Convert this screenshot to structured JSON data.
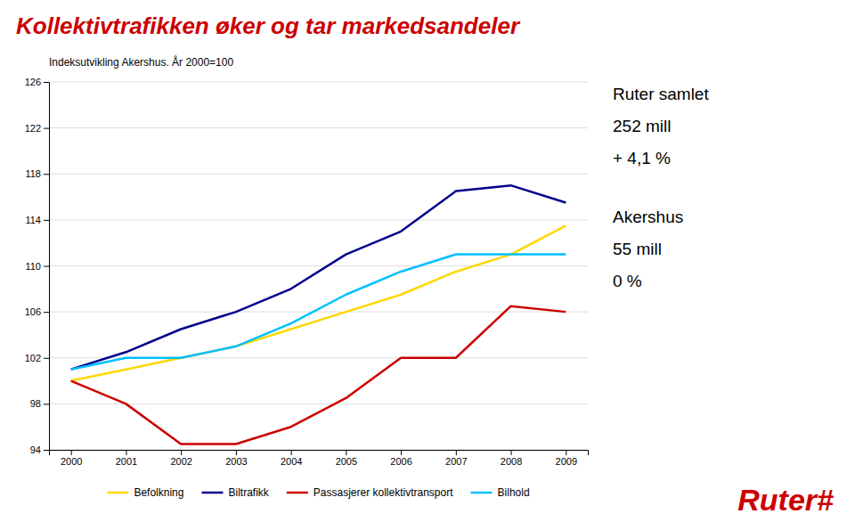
{
  "chart_data": {
    "type": "line",
    "title": "Kollektivtrafikken øker og tar markedsandeler",
    "subtitle": "Indeksutvikling Akershus. År 2000=100",
    "x": [
      2000,
      2001,
      2002,
      2003,
      2004,
      2005,
      2006,
      2007,
      2008,
      2009
    ],
    "series": [
      {
        "name": "Befolkning",
        "color": "#FFD700",
        "values": [
          100,
          101,
          102,
          103,
          104.5,
          106,
          107.5,
          109.5,
          111,
          113.5
        ]
      },
      {
        "name": "Biltrafikk",
        "color": "#00008B",
        "values": [
          101,
          102.5,
          104.5,
          106,
          108,
          111,
          113,
          116.5,
          117,
          115.5
        ]
      },
      {
        "name": "Passasjerer kollektivtransport",
        "color": "#CC0000",
        "values": [
          100,
          98,
          94.5,
          94.5,
          96,
          98.5,
          102,
          102,
          106.5,
          106
        ]
      },
      {
        "name": "Bilhold",
        "color": "#00BFFF",
        "values": [
          101,
          102,
          102,
          103,
          105,
          107.5,
          109.5,
          111,
          111,
          111
        ]
      }
    ],
    "xlim": [
      1999.6,
      2009.4
    ],
    "xticks": [
      2000,
      2001,
      2002,
      2003,
      2004,
      2005,
      2006,
      2007,
      2008,
      2009
    ],
    "ylim": [
      94,
      126
    ],
    "yticks": [
      94,
      98,
      102,
      106,
      110,
      114,
      118,
      122,
      126
    ],
    "grid": true,
    "legend": "bottom",
    "annotations": [
      [
        "Ruter samlet",
        "252 mill",
        "+ 4,1 %"
      ],
      [
        "Akershus",
        "55 mill",
        "0 %"
      ]
    ],
    "logo": "Ruter#"
  }
}
